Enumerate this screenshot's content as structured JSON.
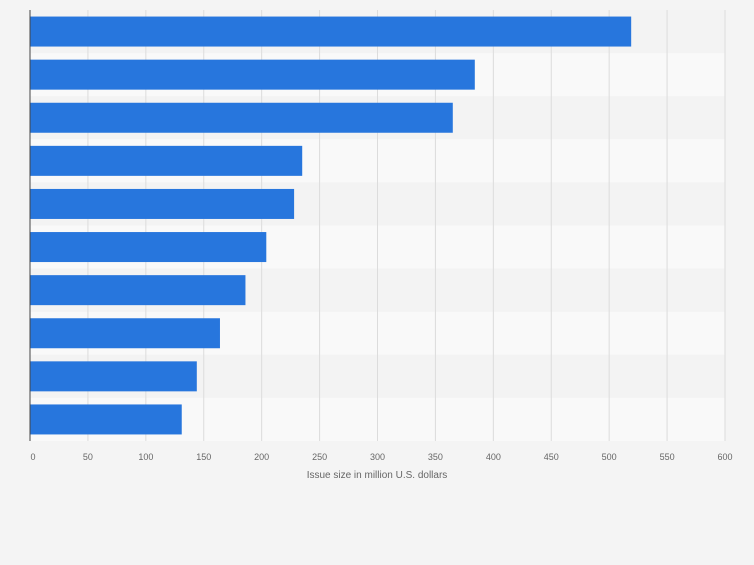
{
  "chart_data": {
    "type": "bar",
    "orientation": "horizontal",
    "categories": [
      "",
      "",
      "",
      "",
      "",
      "",
      "",
      "",
      "",
      ""
    ],
    "values": [
      519,
      384,
      365,
      235,
      228,
      204,
      186,
      164,
      144,
      131
    ],
    "xlabel": "Issue size in million U.S. dollars",
    "ylabel": "",
    "xlim": [
      0,
      600
    ],
    "xticks": [
      "0",
      "50",
      "100",
      "150",
      "200",
      "250",
      "300",
      "350",
      "400",
      "450",
      "500",
      "550",
      "600"
    ],
    "grid": true,
    "colors": {
      "bar": "#2776dd",
      "band_light": "#f9f9f9",
      "band_dark": "#f3f3f3",
      "grid": "#dcdcdc",
      "axis": "#444444",
      "tick_text": "#666666",
      "background": "#f4f4f4"
    }
  }
}
